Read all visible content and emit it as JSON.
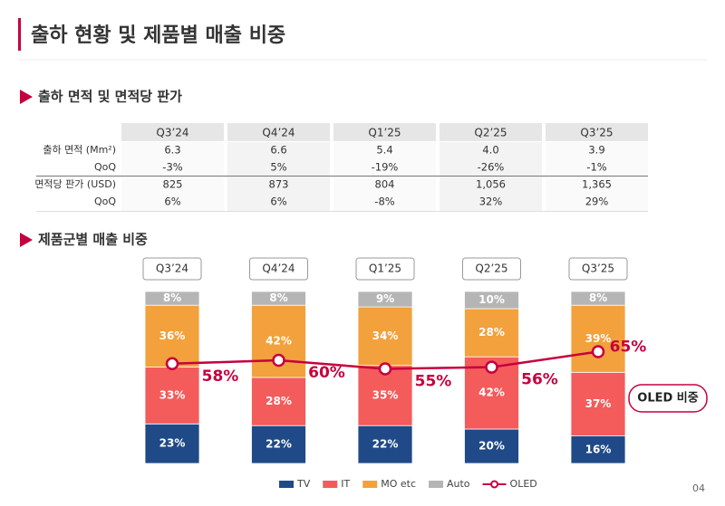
{
  "header": {
    "title": "출하 현황 및 제품별 매출 비중",
    "page": "04"
  },
  "section1": {
    "title": "출하 면적 및 면적당 판가"
  },
  "table": {
    "columns": [
      "Q3’24",
      "Q4’24",
      "Q1’25",
      "Q2’25",
      "Q3’25"
    ],
    "rows": [
      [
        "출하 면적 (Mm²)",
        "6.3",
        "6.6",
        "5.4",
        "4.0",
        "3.9"
      ],
      [
        "QoQ",
        "-3%",
        "5%",
        "-19%",
        "-26%",
        "-1%"
      ],
      [
        "면적당 판가 (USD)",
        "825",
        "873",
        "804",
        "1,056",
        "1,365"
      ],
      [
        "QoQ",
        "6%",
        "6%",
        "-8%",
        "32%",
        "29%"
      ]
    ]
  },
  "section2": {
    "title": "제품군별 매출 비중"
  },
  "chart_data": {
    "type": "stacked-bar-line",
    "categories": [
      "Q3’24",
      "Q4’24",
      "Q1’25",
      "Q2’25",
      "Q3’25"
    ],
    "ylim": [
      0,
      100
    ],
    "series": [
      {
        "name": "TV",
        "color": "#1f4a87",
        "values": [
          23,
          22,
          22,
          20,
          16
        ],
        "value_labels": [
          "23%",
          "22%",
          "22%",
          "20%",
          "16%"
        ]
      },
      {
        "name": "IT",
        "color": "#f45b5b",
        "values": [
          33,
          28,
          35,
          42,
          37
        ],
        "value_labels": [
          "33%",
          "28%",
          "35%",
          "42%",
          "37%"
        ]
      },
      {
        "name": "MO etc",
        "color": "#f2a13d",
        "values": [
          36,
          42,
          34,
          28,
          39
        ],
        "value_labels": [
          "36%",
          "42%",
          "34%",
          "28%",
          "39%"
        ]
      },
      {
        "name": "Auto",
        "color": "#b5b5b5",
        "values": [
          8,
          8,
          9,
          10,
          8
        ],
        "value_labels": [
          "8%",
          "8%",
          "9%",
          "10%",
          "8%"
        ]
      },
      {
        "name": "OLED",
        "color": "#c5003e",
        "type": "line",
        "values": [
          58,
          60,
          55,
          56,
          65
        ],
        "value_labels": [
          "58%",
          "60%",
          "55%",
          "56%",
          "65%"
        ]
      }
    ],
    "annotation": "OLED 비중"
  }
}
